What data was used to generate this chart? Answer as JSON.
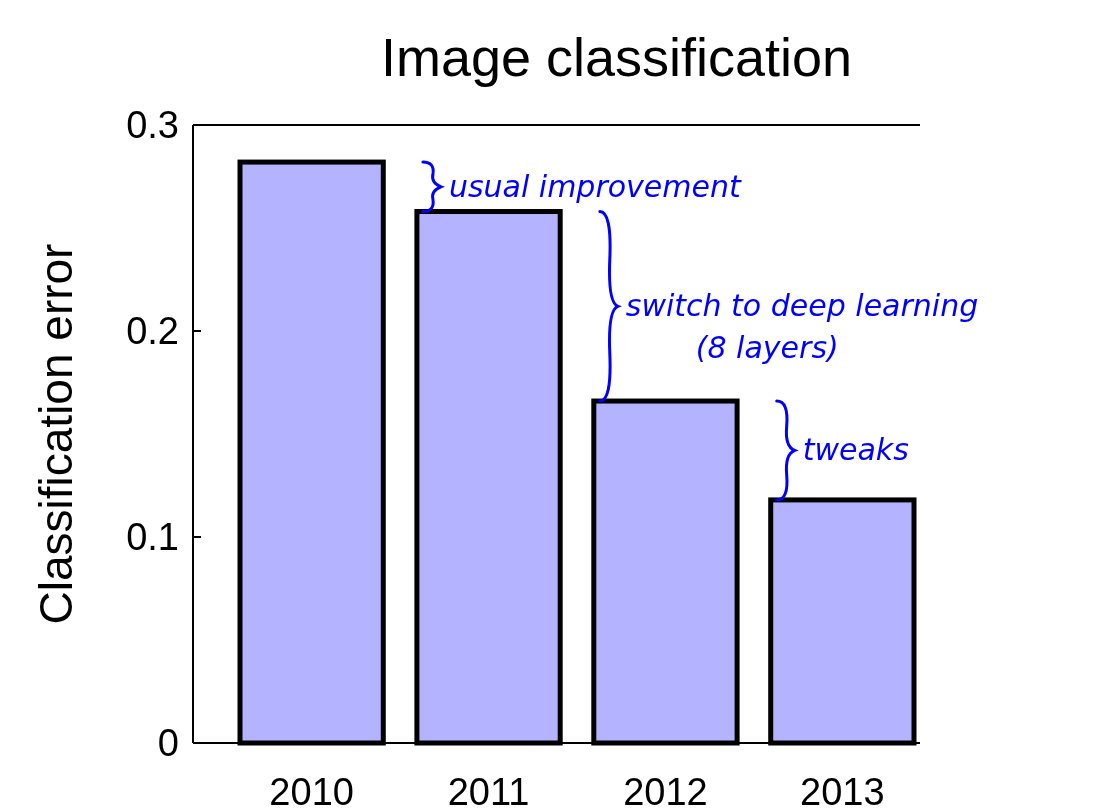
{
  "chart_data": {
    "type": "bar",
    "title": "Image classification",
    "ylabel": "Classification error",
    "categories": [
      "2010",
      "2011",
      "2012",
      "2013"
    ],
    "values": [
      0.282,
      0.258,
      0.166,
      0.118
    ],
    "color": "#b3b3ff",
    "ylim": [
      0,
      0.3
    ],
    "yticks": [
      0,
      0.1,
      0.2,
      0.3
    ],
    "grid": false,
    "annotations": [
      {
        "text": "usual improvement",
        "x": "2011",
        "y": 0.258
      },
      {
        "text": "switch to deep learning\n(8 layers)",
        "x": "2012",
        "y": 0.166
      },
      {
        "text": "tweaks",
        "x": "2013",
        "y": 0.118
      }
    ]
  }
}
